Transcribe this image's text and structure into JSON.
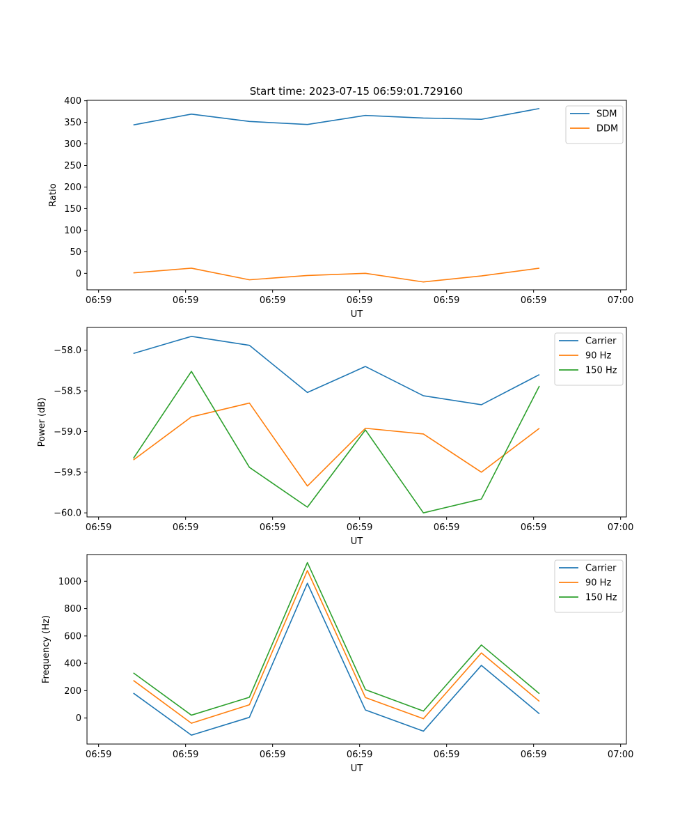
{
  "title": "Start time: 2023-07-15 06:59:01.729160",
  "colors": {
    "blue": "#1f77b4",
    "orange": "#ff7f0e",
    "green": "#2ca02c"
  },
  "chart_data": [
    {
      "type": "line",
      "ylabel": "Ratio",
      "xlabel": "UT",
      "ylim": [
        -38.2,
        401
      ],
      "yticks": [
        0,
        50,
        100,
        150,
        200,
        250,
        300,
        350,
        400
      ],
      "ytick_labels": [
        "0",
        "50",
        "100",
        "150",
        "200",
        "250",
        "300",
        "350",
        "400"
      ],
      "xlim": [
        -0.8,
        8.5
      ],
      "xticks": [
        -0.6,
        0.9,
        2.4,
        3.9,
        5.4,
        6.9,
        8.4
      ],
      "xtick_labels": [
        "06:59",
        "06:59",
        "06:59",
        "06:59",
        "06:59",
        "06:59",
        "07:00"
      ],
      "x": [
        0,
        1,
        2,
        3,
        4,
        5,
        6,
        7
      ],
      "series": [
        {
          "name": "SDM",
          "color": "#1f77b4",
          "values": [
            344,
            369,
            352,
            345,
            366,
            360,
            357,
            382
          ]
        },
        {
          "name": "DDM",
          "color": "#ff7f0e",
          "values": [
            1,
            12,
            -15,
            -5,
            0,
            -20,
            -6,
            12
          ]
        }
      ]
    },
    {
      "type": "line",
      "ylabel": "Power (dB)",
      "xlabel": "UT",
      "ylim": [
        -60.05,
        -57.72
      ],
      "yticks": [
        -60.0,
        -59.5,
        -59.0,
        -58.5,
        -58.0
      ],
      "ytick_labels": [
        "−60.0",
        "−59.5",
        "−59.0",
        "−58.5",
        "−58.0"
      ],
      "xlim": [
        -0.8,
        8.5
      ],
      "xticks": [
        -0.6,
        0.9,
        2.4,
        3.9,
        5.4,
        6.9,
        8.4
      ],
      "xtick_labels": [
        "06:59",
        "06:59",
        "06:59",
        "06:59",
        "06:59",
        "06:59",
        "07:00"
      ],
      "x": [
        0,
        1,
        2,
        3,
        4,
        5,
        6,
        7
      ],
      "series": [
        {
          "name": "Carrier",
          "color": "#1f77b4",
          "values": [
            -58.04,
            -57.83,
            -57.94,
            -58.52,
            -58.2,
            -58.56,
            -58.67,
            -58.3
          ]
        },
        {
          "name": "90 Hz",
          "color": "#ff7f0e",
          "values": [
            -59.35,
            -58.82,
            -58.65,
            -59.67,
            -58.96,
            -59.03,
            -59.5,
            -58.96
          ]
        },
        {
          "name": "150 Hz",
          "color": "#2ca02c",
          "values": [
            -59.33,
            -58.26,
            -59.44,
            -59.93,
            -58.98,
            -60.0,
            -59.83,
            -58.44
          ]
        }
      ]
    },
    {
      "type": "line",
      "ylabel": "Frequency (Hz)",
      "xlabel": "UT",
      "ylim": [
        -190,
        1195
      ],
      "yticks": [
        0,
        200,
        400,
        600,
        800,
        1000
      ],
      "ytick_labels": [
        "0",
        "200",
        "400",
        "600",
        "800",
        "1000"
      ],
      "xlim": [
        -0.8,
        8.5
      ],
      "xticks": [
        -0.6,
        0.9,
        2.4,
        3.9,
        5.4,
        6.9,
        8.4
      ],
      "xtick_labels": [
        "06:59",
        "06:59",
        "06:59",
        "06:59",
        "06:59",
        "06:59",
        "07:00"
      ],
      "x": [
        0,
        1,
        2,
        3,
        4,
        5,
        6,
        7
      ],
      "series": [
        {
          "name": "Carrier",
          "color": "#1f77b4",
          "values": [
            182,
            -125,
            5,
            985,
            59,
            -96,
            385,
            31
          ]
        },
        {
          "name": "90 Hz",
          "color": "#ff7f0e",
          "values": [
            275,
            -38,
            97,
            1078,
            150,
            -5,
            476,
            122
          ]
        },
        {
          "name": "150 Hz",
          "color": "#2ca02c",
          "values": [
            330,
            21,
            152,
            1136,
            208,
            51,
            534,
            178
          ]
        }
      ]
    }
  ]
}
